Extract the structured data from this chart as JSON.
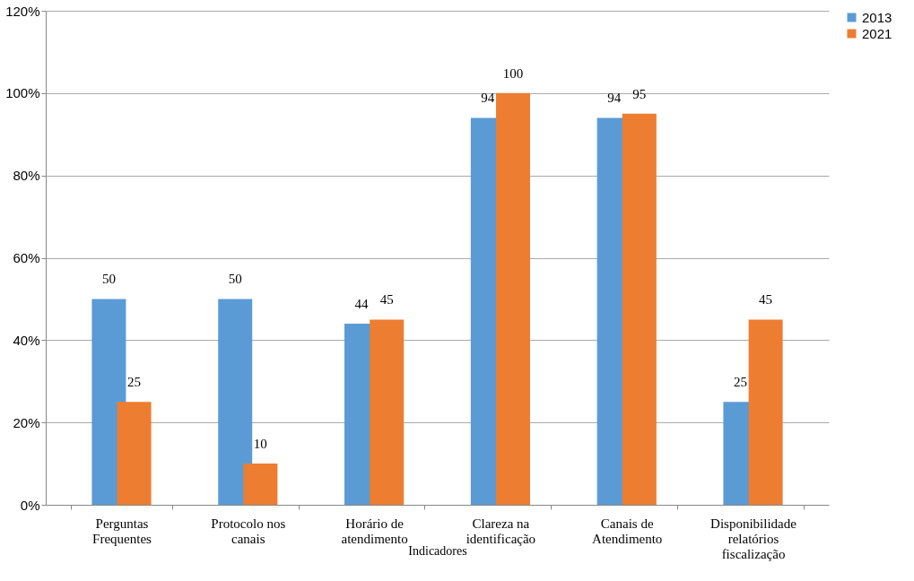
{
  "chart_data": {
    "type": "bar",
    "xlabel": "Indicadores",
    "categories": [
      "Perguntas Frequentes",
      "Protocolo nos canais",
      "Horário de atendimento",
      "Clareza na identificação",
      "Canais de Atendimento",
      "Disponibilidade relatórios fiscalização"
    ],
    "series": [
      {
        "name": "2013",
        "color": "#5b9bd5",
        "values": [
          50,
          50,
          44,
          94,
          94,
          25
        ]
      },
      {
        "name": "2021",
        "color": "#ed7d31",
        "values": [
          25,
          10,
          45,
          100,
          95,
          45
        ]
      }
    ],
    "ylim": [
      0,
      120
    ],
    "yticks": [
      {
        "value": 0,
        "label": "0%"
      },
      {
        "value": 20,
        "label": "20%"
      },
      {
        "value": 40,
        "label": "40%"
      },
      {
        "value": 60,
        "label": "60%"
      },
      {
        "value": 80,
        "label": "80%"
      },
      {
        "value": 100,
        "label": "100%"
      },
      {
        "value": 120,
        "label": "120%"
      }
    ],
    "grid": "y",
    "legend": "right",
    "data_labels": true
  }
}
